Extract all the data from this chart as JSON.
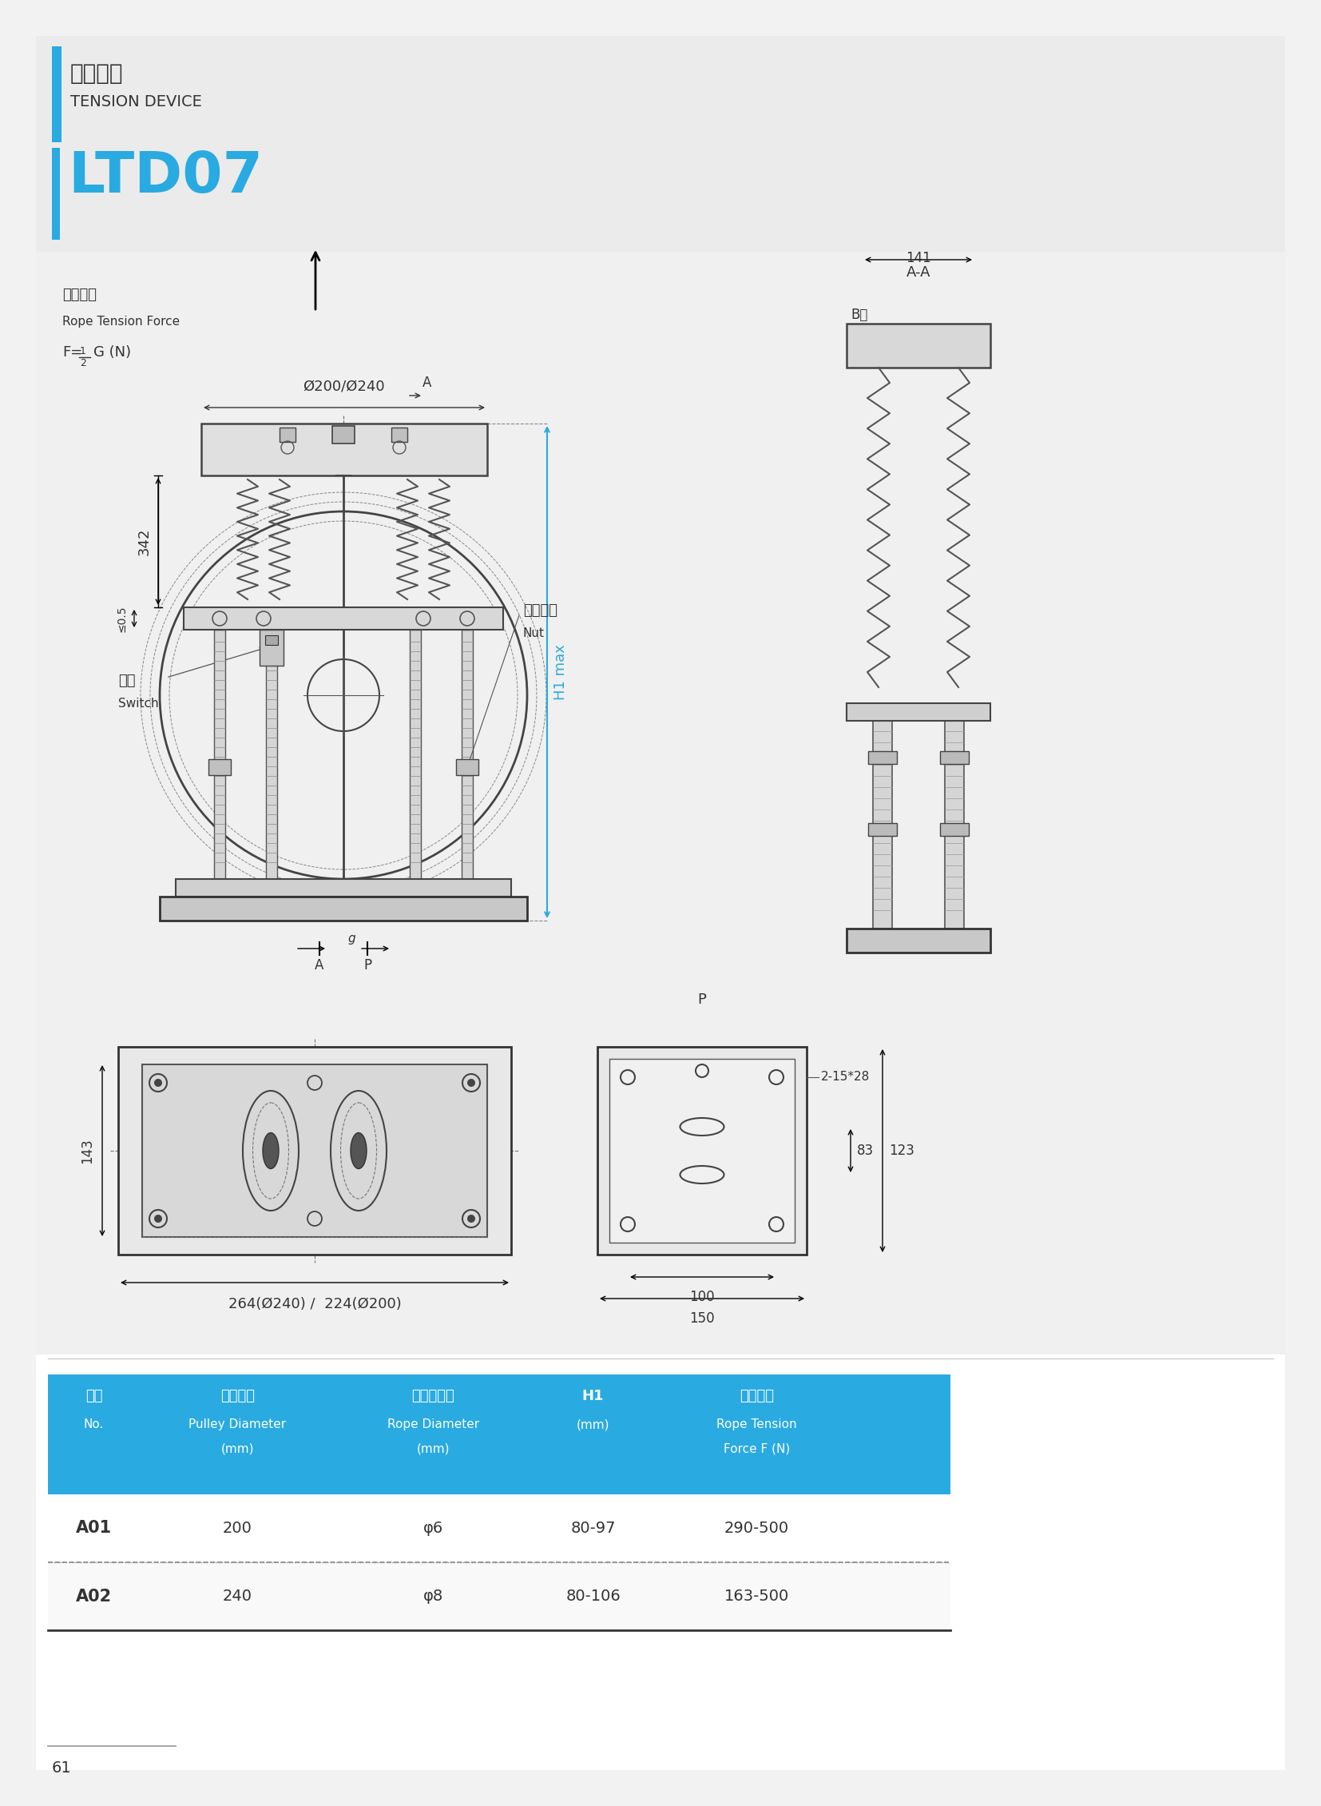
{
  "page_bg": "#f2f2f2",
  "white_bg": "#ffffff",
  "blue_color": "#29aae1",
  "dark_color": "#333333",
  "gray_line": "#888888",
  "light_gray": "#e8e8e8",
  "medium_gray": "#cccccc",
  "table_header_bg": "#29aae1",
  "title_cn": "张紧装置",
  "title_en": "TENSION DEVICE",
  "model": "LTD07",
  "page_number": "61",
  "rope_tension_cn": "绳张紧力",
  "rope_tension_en": "Rope Tension Force",
  "formula_pre": "F=",
  "formula_post": "G (N)",
  "dim_phi": "Ø200/Ø240",
  "dim_342": "342",
  "dim_05": "≤0.5",
  "switch_cn": "开关",
  "switch_en": "Switch",
  "nut_cn": "调整螺母",
  "nut_en": "Nut",
  "h1_label": "H1 max",
  "label_a": "A",
  "label_p": "P",
  "label_aa": "A-A",
  "label_141": "141",
  "label_b": "B向",
  "dim_2_15_28": "2-15*28",
  "dim_83": "83",
  "dim_100": "100",
  "dim_150": "150",
  "dim_123": "123",
  "dim_143": "143",
  "dim_264_224": "264(Ø240) /  224(Ø200)",
  "table_cols_cn": [
    "序号",
    "绳轮直径",
    "钉丝绳直径",
    "H1",
    "绳张紧力"
  ],
  "table_cols_en": [
    "No.",
    "Pulley Diameter\n(mm)",
    "Rope Diameter\n(mm)",
    "(mm)",
    "Rope Tension\nForce F (N)"
  ],
  "table_rows": [
    [
      "A01",
      "200",
      "φ6",
      "80-97",
      "290-500"
    ],
    [
      "A02",
      "240",
      "φ8",
      "80-106",
      "163-500"
    ]
  ]
}
